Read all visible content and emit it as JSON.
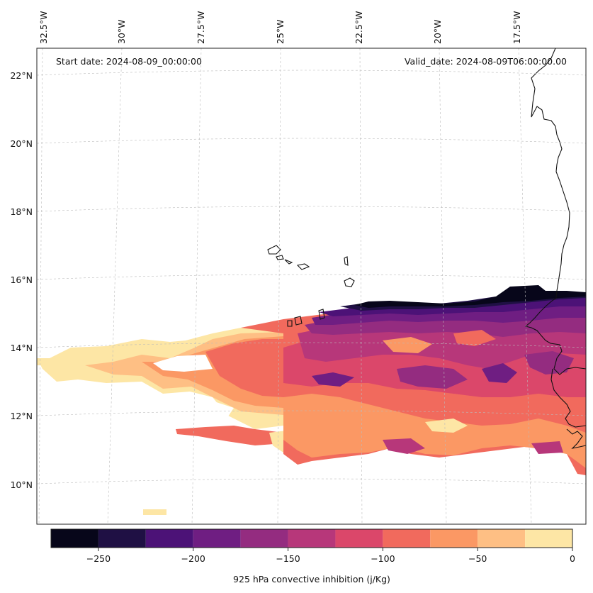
{
  "header": {
    "start_date": "Start date: 2024-08-09_00:00:00",
    "valid_date": "Valid_date: 2024-08-09T06:00:00.00"
  },
  "axes": {
    "lon_labels": [
      "32.5°W",
      "30°W",
      "27.5°W",
      "25°W",
      "22.5°W",
      "20°W",
      "17.5°W"
    ],
    "lat_labels": [
      "22°N",
      "20°N",
      "18°N",
      "16°N",
      "14°N",
      "12°N",
      "10°N"
    ]
  },
  "colorbar": {
    "label": "925 hPa convective inhibition (j/Kg)",
    "ticks": [
      "−250",
      "−200",
      "−150",
      "−100",
      "−50",
      "0"
    ],
    "levels": [
      -275,
      -250,
      -225,
      -200,
      -175,
      -150,
      -125,
      -100,
      -75,
      -50,
      -25,
      0
    ],
    "colors": [
      "#07061a",
      "#1f1044",
      "#4c1277",
      "#6f1e82",
      "#942c80",
      "#b7377a",
      "#db476a",
      "#f16a5d",
      "#fb9864",
      "#febf84",
      "#fde6a5"
    ]
  },
  "map_data": {
    "lon_range": [
      -33,
      -15
    ],
    "lat_range": [
      9,
      22.8
    ],
    "field": "925 hPa convective inhibition",
    "units": "j/Kg"
  }
}
